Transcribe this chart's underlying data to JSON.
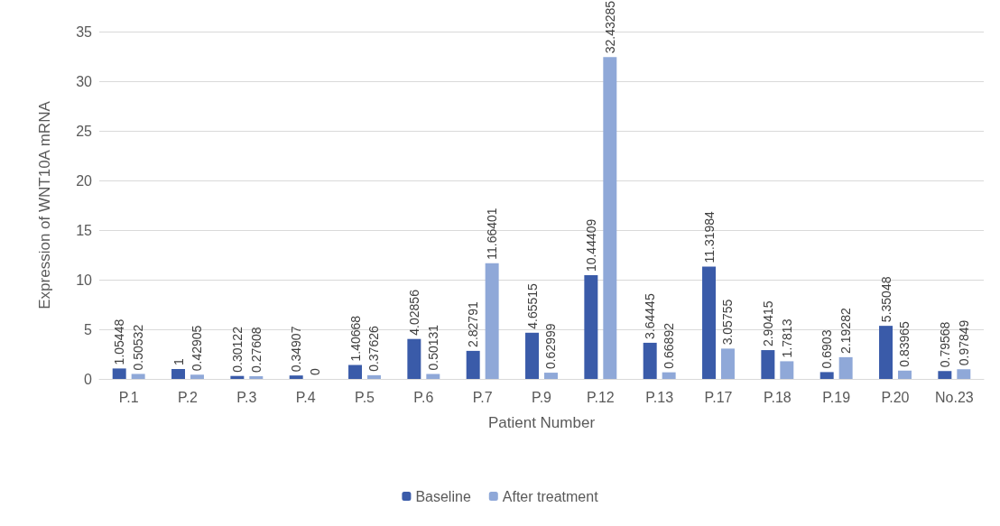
{
  "chart_data": {
    "type": "bar",
    "xlabel": "Patient Number",
    "ylabel": "Expression of WNT10A mRNA",
    "categories": [
      "P.1",
      "P.2",
      "P.3",
      "P.4",
      "P.5",
      "P.6",
      "P.7",
      "P.9",
      "P.12",
      "P.13",
      "P.17",
      "P.18",
      "P.19",
      "P.20",
      "No.23"
    ],
    "series": [
      {
        "name": "Baseline",
        "color": "#3a5ba9",
        "values": [
          1.05448,
          1,
          0.30122,
          0.34907,
          1.40668,
          4.02856,
          2.82791,
          4.65515,
          10.44409,
          3.64445,
          11.31984,
          2.90415,
          0.6903,
          5.35048,
          0.79568
        ]
      },
      {
        "name": "After treatment",
        "color": "#8fa8d8",
        "values": [
          0.50532,
          0.42905,
          0.27608,
          0,
          0.37626,
          0.50131,
          11.66401,
          0.62999,
          32.43285,
          0.66892,
          3.05755,
          1.7813,
          2.19282,
          0.83965,
          0.97849
        ]
      }
    ],
    "ylim": [
      0,
      35
    ],
    "yticks": [
      0,
      5,
      10,
      15,
      20,
      25,
      30,
      35
    ],
    "grid": "y",
    "legend": "bottom",
    "data_labels": true
  }
}
